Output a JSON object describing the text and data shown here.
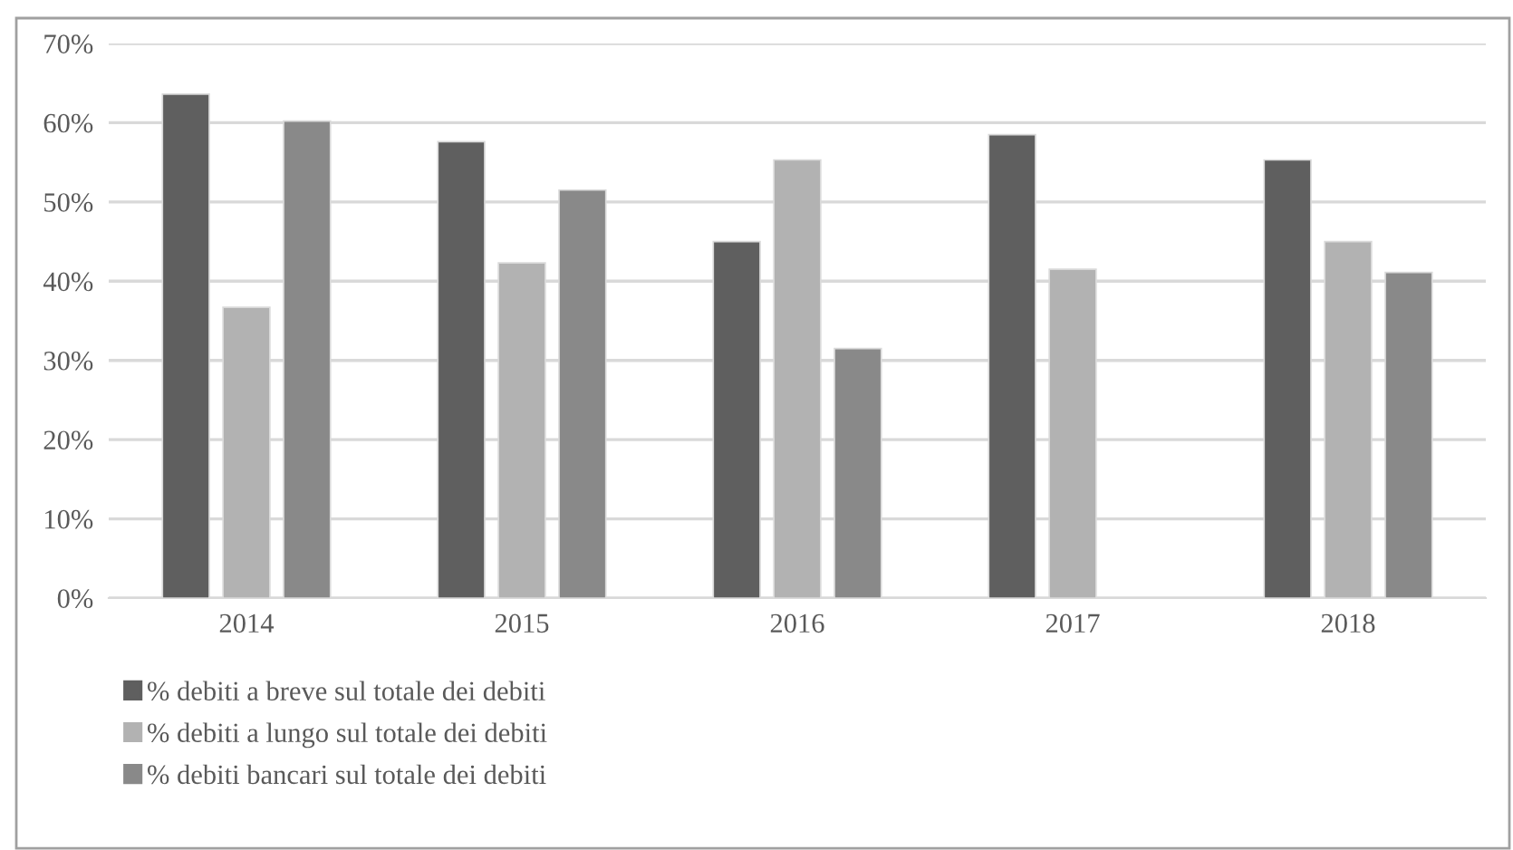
{
  "chart_data": {
    "type": "bar",
    "categories": [
      "2014",
      "2015",
      "2016",
      "2017",
      "2018"
    ],
    "series": [
      {
        "name": "% debiti a breve sul totale dei debiti",
        "color": "#5f5f5f",
        "values": [
          63.6,
          57.6,
          45.0,
          58.5,
          55.3
        ]
      },
      {
        "name": "% debiti a lungo sul totale dei debiti",
        "color": "#b2b2b2",
        "values": [
          36.7,
          42.3,
          55.3,
          41.5,
          45.0
        ]
      },
      {
        "name": "% debiti bancari sul totale dei debiti",
        "color": "#898989",
        "values": [
          60.2,
          51.5,
          31.5,
          null,
          41.1
        ]
      }
    ],
    "ylim": [
      0,
      70
    ],
    "yticks": [
      {
        "value": 0,
        "label": "0%"
      },
      {
        "value": 10,
        "label": "10%"
      },
      {
        "value": 20,
        "label": "20%"
      },
      {
        "value": 30,
        "label": "30%"
      },
      {
        "value": 40,
        "label": "40%"
      },
      {
        "value": 50,
        "label": "50%"
      },
      {
        "value": 60,
        "label": "60%"
      },
      {
        "value": 70,
        "label": "70%"
      }
    ],
    "grid": "y",
    "legend": "bottom left"
  }
}
